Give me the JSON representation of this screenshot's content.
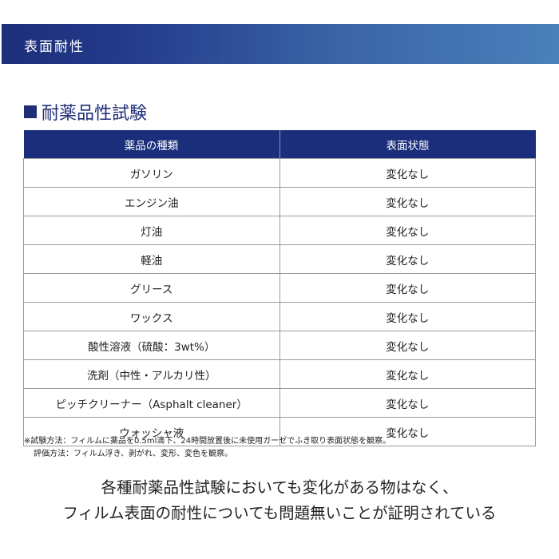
{
  "banner": {
    "title": "表面耐性"
  },
  "section": {
    "title": "耐薬品性試験"
  },
  "table": {
    "headers": [
      "薬品の種類",
      "表面状態"
    ],
    "rows": [
      [
        "ガソリン",
        "変化なし"
      ],
      [
        "エンジン油",
        "変化なし"
      ],
      [
        "灯油",
        "変化なし"
      ],
      [
        "軽油",
        "変化なし"
      ],
      [
        "グリース",
        "変化なし"
      ],
      [
        "ワックス",
        "変化なし"
      ],
      [
        "酸性溶液（硫酸：3wt%）",
        "変化なし"
      ],
      [
        "洗剤（中性・アルカリ性）",
        "変化なし"
      ],
      [
        "ピッチクリーナー（Asphalt cleaner）",
        "変化なし"
      ],
      [
        "ウォッシャ液",
        "変化なし"
      ]
    ]
  },
  "notes": [
    "※試験方法：フィルムに薬品を0.5ml滴下、24時間放置後に未使用ガーゼでふき取り表面状態を観察。",
    "評価方法：フィルム浮き、剥がれ、変形、変色を観察。"
  ],
  "conclusion": [
    "各種耐薬品性試験においても変化がある物はなく、",
    "フィルム表面の耐性についても問題無いことが証明されている"
  ]
}
